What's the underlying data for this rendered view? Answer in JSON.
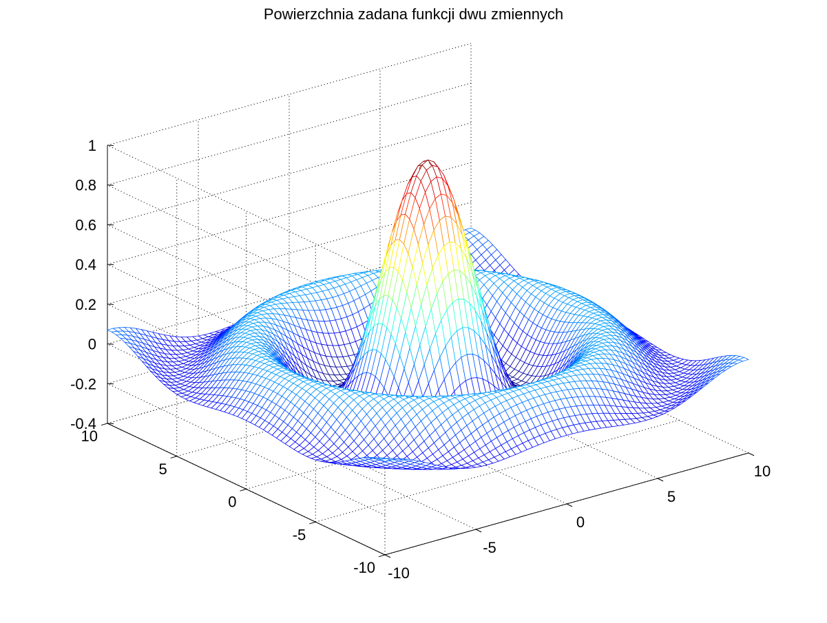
{
  "chart_data": {
    "type": "surface",
    "title": "Powierzchnia zadana funkcji dwu zmiennych",
    "xlabel": "",
    "ylabel": "",
    "zlabel": "",
    "function": "z = sin(sqrt(x^2 + y^2)) / sqrt(x^2 + y^2)",
    "x_range": [
      -10,
      10
    ],
    "y_range": [
      -10,
      10
    ],
    "zlim": [
      -0.4,
      1
    ],
    "peak_value": 1,
    "x_ticks": [
      -10,
      -5,
      0,
      5,
      10
    ],
    "y_ticks": [
      -10,
      -5,
      0,
      5,
      10
    ],
    "z_ticks": [
      -0.4,
      -0.2,
      0,
      0.2,
      0.4,
      0.6,
      0.8,
      1
    ],
    "x_tick_labels": [
      "-10",
      "-5",
      "0",
      "5",
      "10"
    ],
    "y_tick_labels": [
      "-10",
      "-5",
      "0",
      "5",
      "10"
    ],
    "z_tick_labels": [
      "-0.4",
      "-0.2",
      "0",
      "0.2",
      "0.4",
      "0.6",
      "0.8",
      "1"
    ],
    "mesh_points_per_axis": 65,
    "colormap": "jet",
    "grid": true,
    "grid_style": "dotted",
    "box": "back walls"
  }
}
